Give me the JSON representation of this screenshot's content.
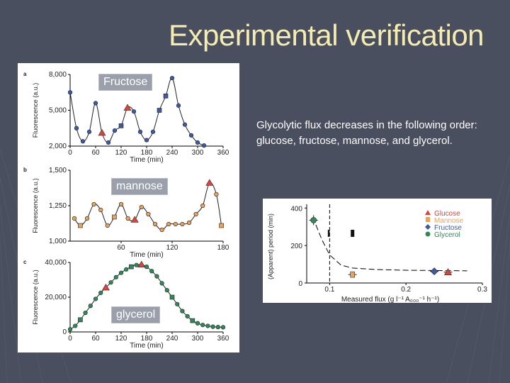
{
  "slide": {
    "title": "Experimental verification",
    "body_text": "Glycolytic flux decreases in the following order: glucose, fructose, mannose, and glycerol."
  },
  "labels": {
    "fructose": "Fructose",
    "mannose": "mannose",
    "glycerol": "glycerol"
  },
  "colors": {
    "background": "#4a4f5f",
    "title": "#f4ecb0",
    "glucose_marker": "#d8453b",
    "mannose_marker": "#e8a35a",
    "fructose_marker": "#3d5aa8",
    "glycerol_marker": "#2f8a5a"
  },
  "chart_data": [
    {
      "type": "line",
      "panel": "a",
      "ylabel": "Fluorescence (a.u.)",
      "xlabel": "Time (min)",
      "x_ticks": [
        0,
        60,
        120,
        180,
        240,
        300,
        360
      ],
      "y_ticks": [
        2000,
        5000,
        8000
      ],
      "y_tick_labels": [
        "2,000",
        "5,000",
        "8,000"
      ],
      "xlim": [
        0,
        360
      ],
      "ylim": [
        2000,
        8000
      ],
      "x": [
        0,
        15,
        30,
        45,
        60,
        75,
        90,
        105,
        120,
        135,
        150,
        165,
        180,
        195,
        210,
        225,
        240,
        255,
        270,
        285,
        300,
        315
      ],
      "y": [
        6500,
        3500,
        2400,
        3200,
        5600,
        3100,
        2300,
        3300,
        3700,
        5200,
        4900,
        3200,
        2500,
        3200,
        5000,
        6200,
        7700,
        5400,
        3800,
        2900,
        2300,
        2050
      ]
    },
    {
      "type": "line",
      "panel": "b",
      "ylabel": "Fluorescence (a.u.)",
      "xlabel": "Time (min)",
      "x_ticks": [
        60,
        120,
        180
      ],
      "y_ticks": [
        1000,
        1250,
        1500
      ],
      "y_tick_labels": [
        "1,000",
        "1,250",
        "1,500"
      ],
      "xlim": [
        0,
        180
      ],
      "ylim": [
        1000,
        1500
      ],
      "x": [
        5,
        12,
        20,
        28,
        36,
        44,
        52,
        60,
        68,
        76,
        84,
        92,
        100,
        108,
        116,
        124,
        132,
        140,
        148,
        156,
        164,
        172,
        178
      ],
      "y": [
        1160,
        1110,
        1160,
        1260,
        1220,
        1110,
        1170,
        1260,
        1160,
        1150,
        1240,
        1190,
        1120,
        1080,
        1120,
        1120,
        1120,
        1130,
        1190,
        1250,
        1410,
        1330,
        1110
      ]
    },
    {
      "type": "line",
      "panel": "c",
      "ylabel": "Fluorescence (a.u.)",
      "xlabel": "Time (min)",
      "x_ticks": [
        0,
        60,
        120,
        180,
        240,
        300,
        360
      ],
      "y_ticks": [
        0,
        20000,
        40000
      ],
      "y_tick_labels": [
        "0",
        "20,000",
        "40,000"
      ],
      "xlim": [
        0,
        360
      ],
      "ylim": [
        0,
        40000
      ],
      "x": [
        0,
        12,
        24,
        36,
        48,
        60,
        72,
        84,
        96,
        108,
        120,
        132,
        144,
        156,
        168,
        180,
        192,
        204,
        216,
        228,
        240,
        252,
        264,
        276,
        288,
        300,
        312,
        324,
        336,
        348,
        360
      ],
      "y": [
        1500,
        3500,
        7000,
        11000,
        15000,
        19000,
        22500,
        25500,
        28500,
        31500,
        34000,
        36000,
        37500,
        38500,
        38700,
        37500,
        35000,
        32000,
        28000,
        24000,
        20000,
        16000,
        12000,
        9000,
        6500,
        5000,
        4000,
        3500,
        3000,
        2800,
        2700
      ]
    },
    {
      "type": "scatter",
      "ylabel": "(Apparent) period (min)",
      "xlabel": "Measured flux (g l⁻¹ A₀₀₀⁻¹ h⁻¹)",
      "x_ticks": [
        0.1,
        0.2,
        0.3
      ],
      "y_ticks": [
        0,
        200,
        400
      ],
      "xlim": [
        0.07,
        0.3
      ],
      "ylim": [
        0,
        420
      ],
      "legend": [
        "Glucose",
        "Mannose",
        "Fructose",
        "Glycerol"
      ],
      "legend_placement": "top-right",
      "series": [
        {
          "name": "Glucose",
          "x": [
            0.255
          ],
          "y": [
            58
          ]
        },
        {
          "name": "Mannose",
          "x": [
            0.13
          ],
          "y": [
            45
          ]
        },
        {
          "name": "Fructose",
          "x": [
            0.237
          ],
          "y": [
            62
          ]
        },
        {
          "name": "Glycerol",
          "x": [
            0.079
          ],
          "y": [
            335
          ]
        }
      ],
      "bars": {
        "x": [
          0.1,
          0.13
        ],
        "y": [
          265,
          265
        ]
      },
      "fit_curve": {
        "x": [
          0.082,
          0.09,
          0.1,
          0.115,
          0.13,
          0.16,
          0.2,
          0.25,
          0.28
        ],
        "y": [
          310,
          230,
          150,
          95,
          80,
          72,
          68,
          66,
          65
        ]
      }
    }
  ]
}
